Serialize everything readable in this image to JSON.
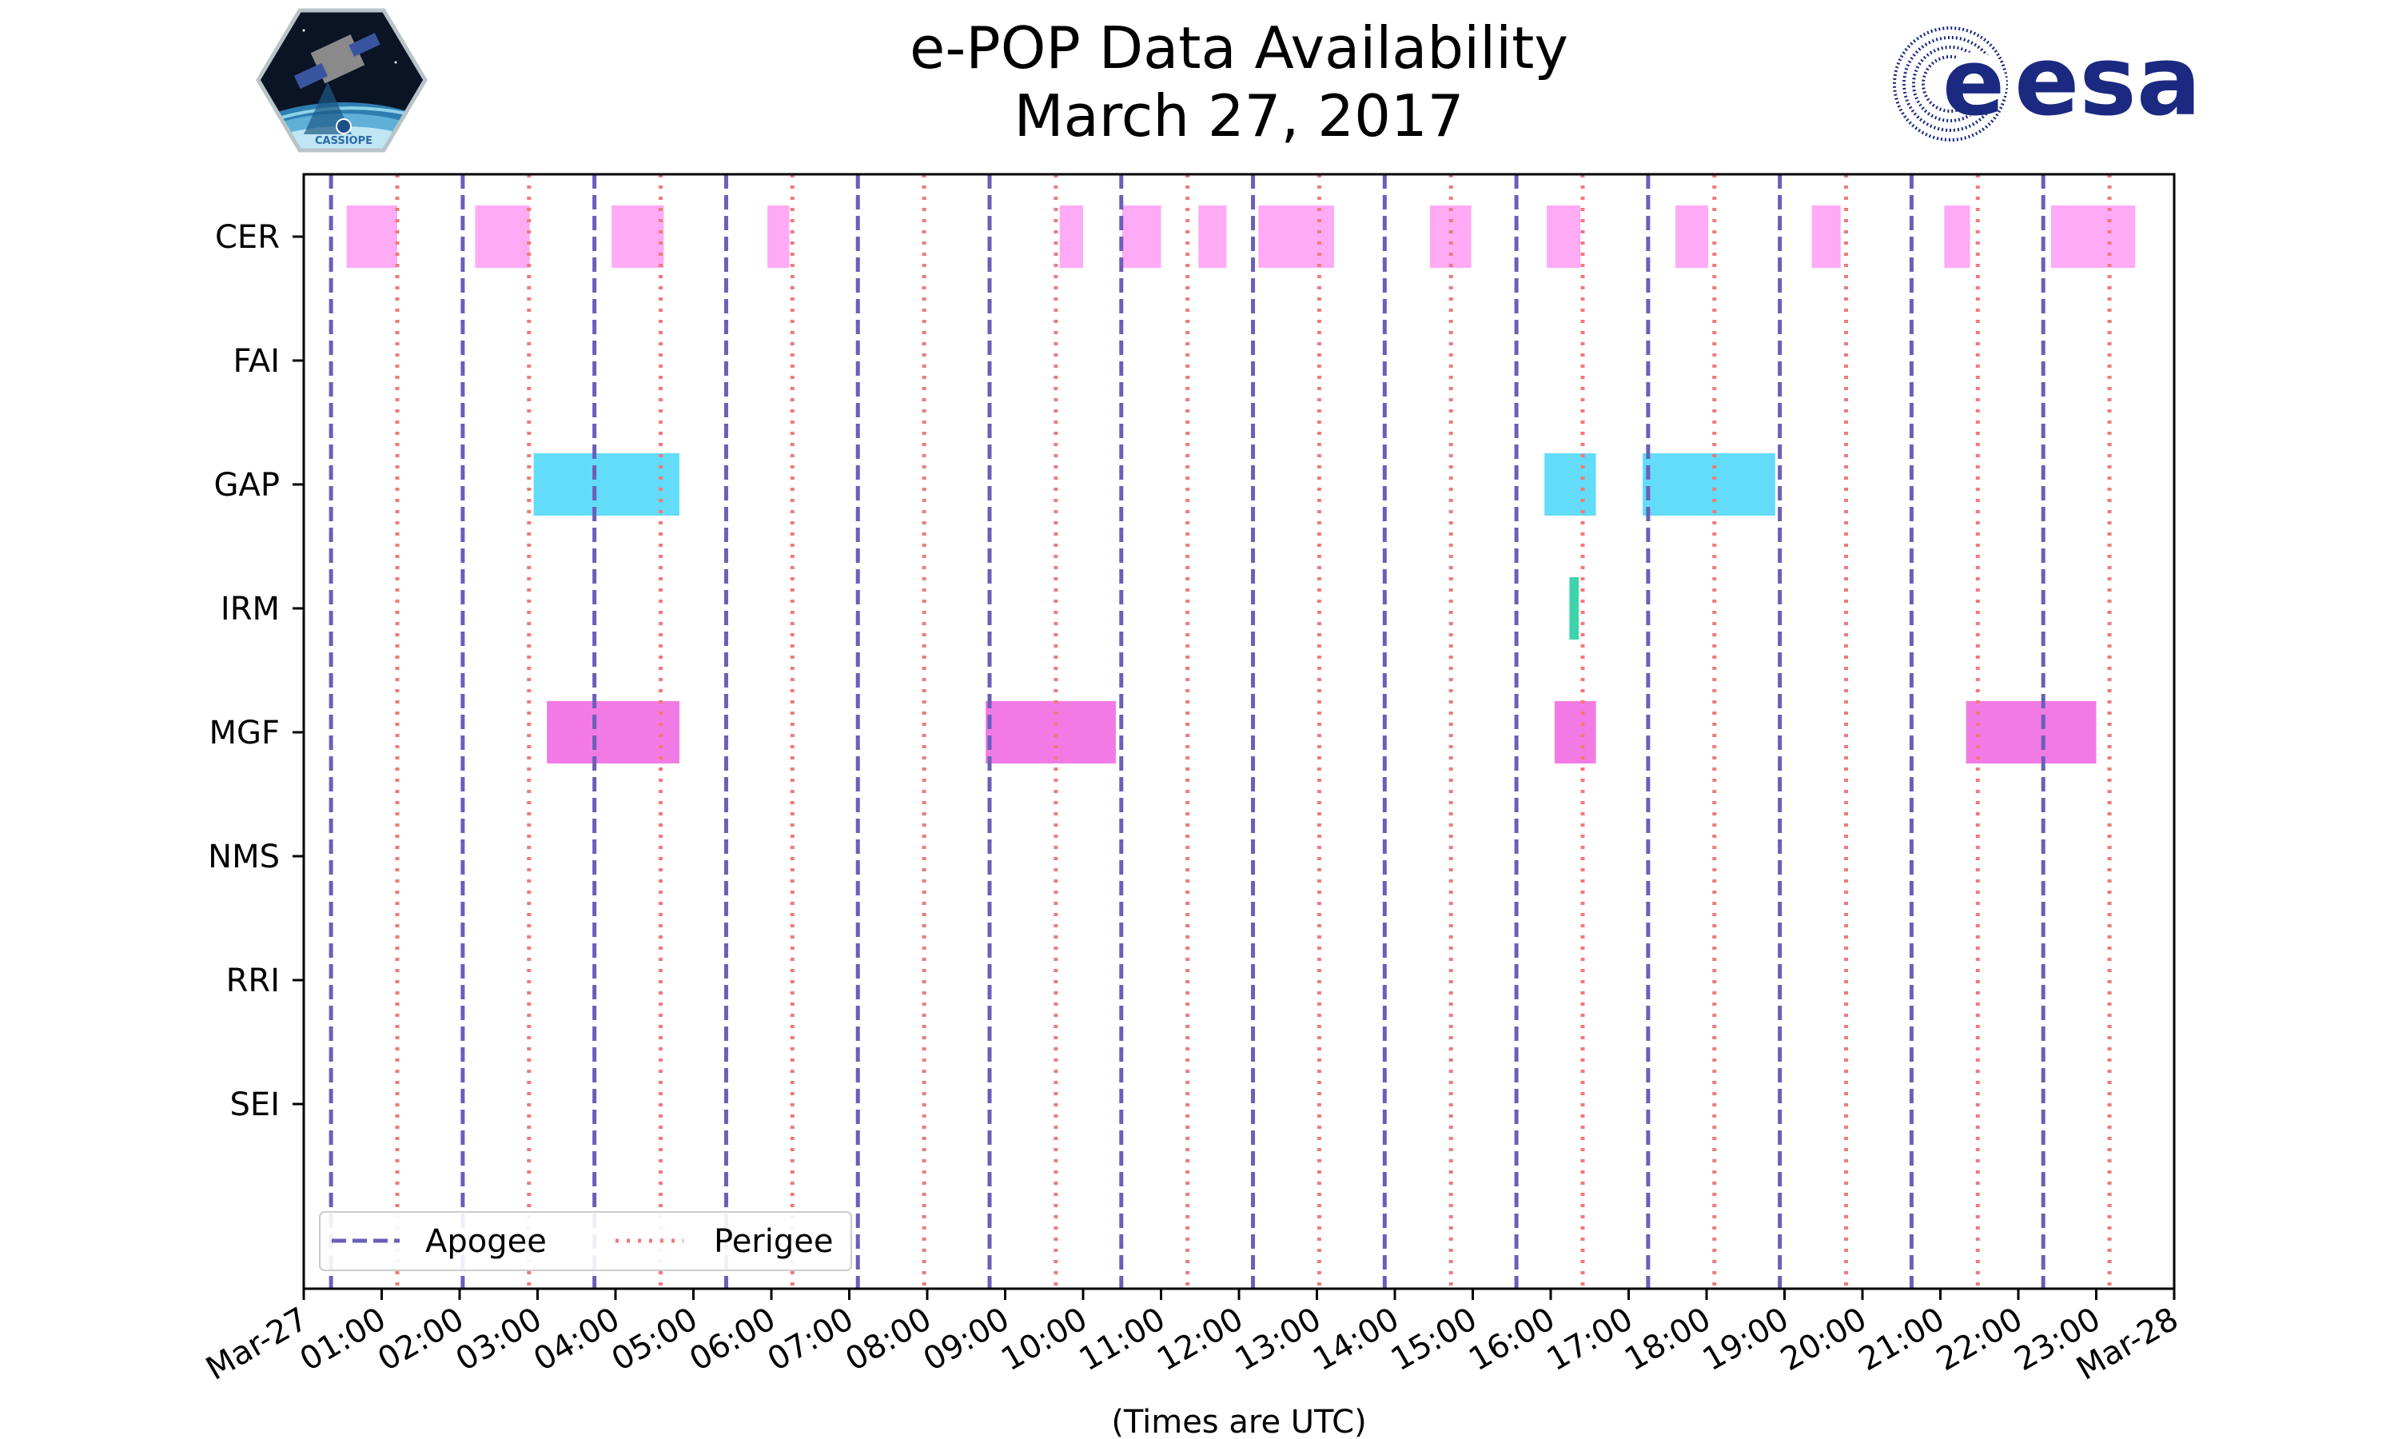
{
  "header": {
    "title_line1": "e-POP Data Availability",
    "title_line2": "March 27, 2017"
  },
  "logos": {
    "left": {
      "name": "CASSIOPE mission patch",
      "caption": "CASSIOPE"
    },
    "right": {
      "name": "ESA logo",
      "text": "esa"
    }
  },
  "chart_data": {
    "type": "timeline",
    "xlabel": "(Times are UTC)",
    "x_unit": "hours since 2017-03-27 00:00 UTC",
    "xlim": [
      0,
      24
    ],
    "x_ticks": [
      {
        "t": 0,
        "label": "Mar-27"
      },
      {
        "t": 1,
        "label": "01:00"
      },
      {
        "t": 2,
        "label": "02:00"
      },
      {
        "t": 3,
        "label": "03:00"
      },
      {
        "t": 4,
        "label": "04:00"
      },
      {
        "t": 5,
        "label": "05:00"
      },
      {
        "t": 6,
        "label": "06:00"
      },
      {
        "t": 7,
        "label": "07:00"
      },
      {
        "t": 8,
        "label": "08:00"
      },
      {
        "t": 9,
        "label": "09:00"
      },
      {
        "t": 10,
        "label": "10:00"
      },
      {
        "t": 11,
        "label": "11:00"
      },
      {
        "t": 12,
        "label": "12:00"
      },
      {
        "t": 13,
        "label": "13:00"
      },
      {
        "t": 14,
        "label": "14:00"
      },
      {
        "t": 15,
        "label": "15:00"
      },
      {
        "t": 16,
        "label": "16:00"
      },
      {
        "t": 17,
        "label": "17:00"
      },
      {
        "t": 18,
        "label": "18:00"
      },
      {
        "t": 19,
        "label": "19:00"
      },
      {
        "t": 20,
        "label": "20:00"
      },
      {
        "t": 21,
        "label": "21:00"
      },
      {
        "t": 22,
        "label": "22:00"
      },
      {
        "t": 23,
        "label": "23:00"
      },
      {
        "t": 24,
        "label": "Mar-28"
      }
    ],
    "instruments": [
      "CER",
      "FAI",
      "GAP",
      "IRM",
      "MGF",
      "NMS",
      "RRI",
      "SEI"
    ],
    "colors": {
      "CER": "#ffaaf5",
      "GAP": "#62dcf8",
      "IRM": "#3ed4aa",
      "MGF": "#f27ae4",
      "apogee": "#6a5fb8",
      "perigee": "#f07a7a"
    },
    "intervals": {
      "CER": [
        [
          0.55,
          1.2
        ],
        [
          2.2,
          2.9
        ],
        [
          3.95,
          4.62
        ],
        [
          5.95,
          6.23
        ],
        [
          9.7,
          10.0
        ],
        [
          10.5,
          11.0
        ],
        [
          11.48,
          11.84
        ],
        [
          12.25,
          13.22
        ],
        [
          14.45,
          14.98
        ],
        [
          15.95,
          16.38
        ],
        [
          17.6,
          18.02
        ],
        [
          19.35,
          19.72
        ],
        [
          21.05,
          21.38
        ],
        [
          22.42,
          23.5
        ]
      ],
      "FAI": [],
      "GAP": [
        [
          2.95,
          4.82
        ],
        [
          15.92,
          16.58
        ],
        [
          17.18,
          18.88
        ]
      ],
      "IRM": [
        [
          16.24,
          16.36
        ]
      ],
      "MGF": [
        [
          3.12,
          4.82
        ],
        [
          8.75,
          10.42
        ],
        [
          16.05,
          16.58
        ],
        [
          21.33,
          23.0
        ]
      ],
      "NMS": [],
      "RRI": [],
      "SEI": []
    },
    "apogee_times": [
      0.35,
      2.04,
      3.73,
      5.42,
      7.11,
      8.8,
      10.49,
      12.18,
      13.87,
      15.56,
      17.25,
      18.94,
      20.63,
      22.32
    ],
    "perigee_times": [
      1.2,
      2.89,
      4.58,
      6.27,
      7.96,
      9.65,
      11.34,
      13.03,
      14.72,
      16.41,
      18.1,
      19.79,
      21.48,
      23.17
    ],
    "legend": {
      "apogee_label": "Apogee",
      "perigee_label": "Perigee",
      "position": "lower-left"
    }
  }
}
